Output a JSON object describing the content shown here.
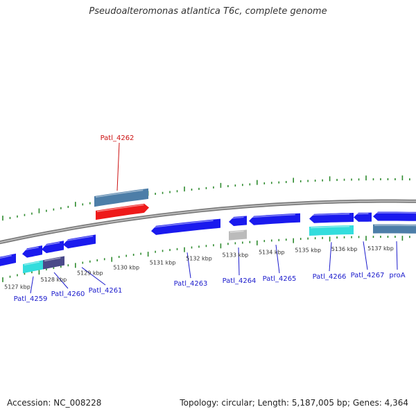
{
  "header": {
    "title": "Pseudoalteromonas atlantica T6c, complete genome"
  },
  "footer": {
    "accession": "Accession: NC_008228",
    "summary": "Topology: circular; Length: 5,187,005 bp; Genes: 4,364"
  },
  "colors": {
    "backbone": "#8a8a8a",
    "tick": "#2e8b2e",
    "gene_blue": "#1a1aee",
    "gene_cyan": "#33dddd",
    "gene_steel": "#4d7ea8",
    "gene_grey": "#bbbbbb",
    "gene_dark": "#4a4a8a",
    "gene_red": "#ee1a1a",
    "label_blue": "#1a1acc",
    "label_red": "#cc1111"
  },
  "scale_labels": [
    {
      "kbp": 5127,
      "text": "5127 kbp"
    },
    {
      "kbp": 5128,
      "text": "5128 kbp"
    },
    {
      "kbp": 5129,
      "text": "5129 kbp"
    },
    {
      "kbp": 5130,
      "text": "5130 kbp"
    },
    {
      "kbp": 5131,
      "text": "5131 kbp"
    },
    {
      "kbp": 5132,
      "text": "5132 kbp"
    },
    {
      "kbp": 5133,
      "text": "5133 kbp"
    },
    {
      "kbp": 5134,
      "text": "5134 kbp"
    },
    {
      "kbp": 5135,
      "text": "5135 kbp"
    },
    {
      "kbp": 5136,
      "text": "5136 kbp"
    },
    {
      "kbp": 5137,
      "text": "5137 kbp"
    }
  ],
  "gene_labels": [
    {
      "text": "Patl_4259"
    },
    {
      "text": "Patl_4260"
    },
    {
      "text": "Patl_4261"
    },
    {
      "text": "Patl_4262"
    },
    {
      "text": "Patl_4263"
    },
    {
      "text": "Patl_4264"
    },
    {
      "text": "Patl_4265"
    },
    {
      "text": "Patl_4266"
    },
    {
      "text": "Patl_4267"
    },
    {
      "text": "proA"
    }
  ]
}
